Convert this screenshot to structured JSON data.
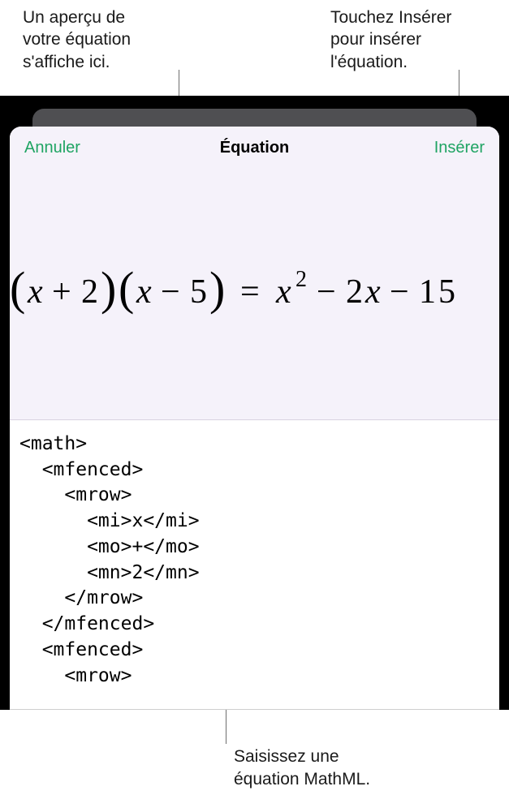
{
  "annotations": {
    "preview_hint": "Un aperçu de\nvotre équation\ns'affiche ici.",
    "insert_hint": "Touchez Insérer\npour insérer\nl'équation.",
    "input_hint": "Saisissez une\néquation MathML."
  },
  "navbar": {
    "cancel": "Annuler",
    "title": "Équation",
    "insert": "Insérer"
  },
  "preview": {
    "equation_latex": "(x + 2)(x − 5) = x² − 2x − 15",
    "text_color": "#000000",
    "background_color": "#f5f2fa"
  },
  "editor": {
    "font_family": "monospace",
    "font_size_pt": 18,
    "background_color": "#ffffff",
    "text_color": "#000000",
    "lines": [
      "<math>",
      "  <mfenced>",
      "    <mrow>",
      "      <mi>x</mi>",
      "      <mo>+</mo>",
      "      <mn>2</mn>",
      "    </mrow>",
      "  </mfenced>",
      "  <mfenced>",
      "    <mrow>"
    ]
  },
  "colors": {
    "accent": "#1fa463",
    "device_background": "#000000",
    "sheet_background": "#ffffff",
    "navbar_background": "#f5f2fa",
    "divider": "#d9d3e0",
    "leader": "#6e6e6e"
  }
}
